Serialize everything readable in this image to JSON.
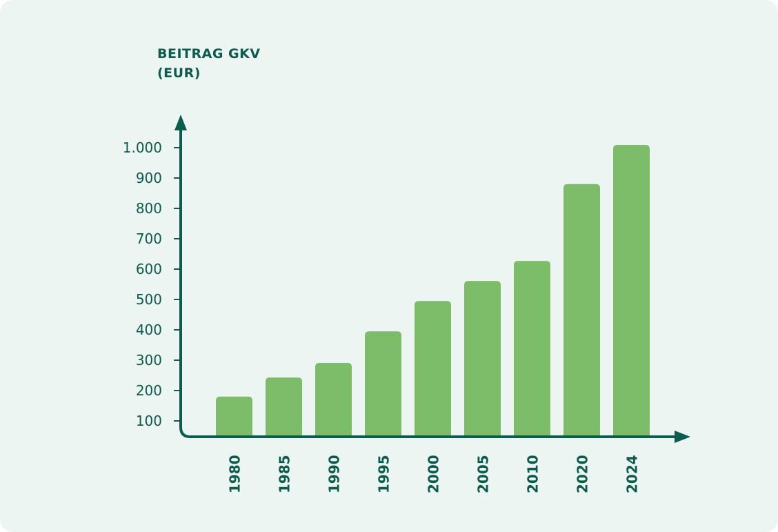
{
  "chart_data": {
    "type": "bar",
    "title": "",
    "ylabel_lines": [
      "BEITRAG GKV",
      "(EUR)"
    ],
    "xlabel": "",
    "categories": [
      "1980",
      "1985",
      "1990",
      "1995",
      "2000",
      "2005",
      "2010",
      "2020",
      "2024"
    ],
    "values": [
      180,
      243,
      291,
      395,
      495,
      561,
      627,
      880,
      1009
    ],
    "yticks": [
      100,
      200,
      300,
      400,
      500,
      600,
      700,
      800,
      900,
      1000
    ],
    "ytick_labels": [
      "100",
      "200",
      "300",
      "400",
      "500",
      "600",
      "700",
      "800",
      "900",
      "1.000"
    ],
    "ylim": [
      52,
      1090
    ],
    "grid": false,
    "legend": "none",
    "colors": {
      "bar": "#7dbd69",
      "axis": "#0b5c4c",
      "background": "#edf5f2"
    }
  }
}
